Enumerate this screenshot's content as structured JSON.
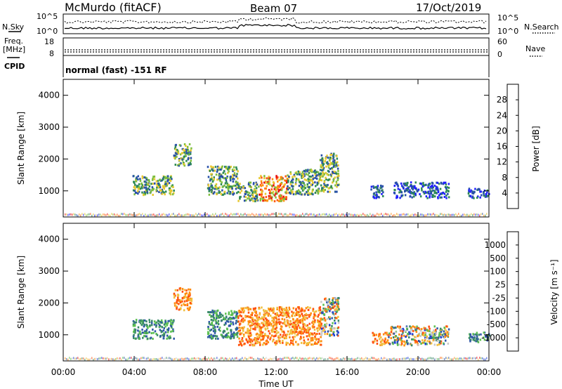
{
  "header": {
    "station": "McMurdo (fitACF)",
    "beam": "Beam 07",
    "date": "17/Oct/2019"
  },
  "top_panels": {
    "nsky_label": "N.Sky",
    "nsky_ticks": [
      "10^5",
      "10^0"
    ],
    "nsearch_label": "N.Search",
    "nsearch_ticks": [
      "10^5",
      "10^0"
    ],
    "freq_label_1": "Freq.",
    "freq_label_2": "[MHz]",
    "freq_ticks": [
      "18",
      "8"
    ],
    "nave_label": "Nave",
    "nave_ticks": [
      "60",
      "0"
    ],
    "cpid_label": "CPID",
    "cpid_text": "normal (fast) -151 RF"
  },
  "chart_data": [
    {
      "type": "heatmap",
      "name": "power-panel",
      "ylabel": "Slant Range [km]",
      "yticks": [
        1000,
        2000,
        3000,
        4000
      ],
      "ylim": [
        180,
        4500
      ],
      "xlim": [
        0,
        24
      ],
      "colorbar": {
        "label": "Power [dB]",
        "ticks": [
          "4",
          "8",
          "12",
          "16",
          "20",
          "24",
          "28"
        ],
        "colors": [
          "#1f1fff",
          "#2850a8",
          "#2e8a55",
          "#7fbf3f",
          "#e8c830",
          "#ff9010",
          "#ff5a10",
          "#e81010"
        ]
      },
      "echo_regions": [
        {
          "t0": 3.9,
          "t1": 6.2,
          "r0": 900,
          "r1": 1500,
          "level": "medium"
        },
        {
          "t0": 6.2,
          "t1": 7.2,
          "r0": 1800,
          "r1": 2500,
          "level": "medium"
        },
        {
          "t0": 8.1,
          "t1": 9.8,
          "r0": 900,
          "r1": 1800,
          "level": "medium"
        },
        {
          "t0": 9.8,
          "t1": 11.0,
          "r0": 700,
          "r1": 1300,
          "level": "medium"
        },
        {
          "t0": 11.0,
          "t1": 12.6,
          "r0": 700,
          "r1": 1500,
          "level": "high"
        },
        {
          "t0": 12.6,
          "t1": 14.4,
          "r0": 900,
          "r1": 1700,
          "level": "medium"
        },
        {
          "t0": 14.4,
          "t1": 15.5,
          "r0": 1000,
          "r1": 2200,
          "level": "medium"
        },
        {
          "t0": 17.3,
          "t1": 18.0,
          "r0": 800,
          "r1": 1200,
          "level": "low"
        },
        {
          "t0": 18.6,
          "t1": 21.7,
          "r0": 800,
          "r1": 1300,
          "level": "low"
        },
        {
          "t0": 22.8,
          "t1": 24.0,
          "r0": 800,
          "r1": 1100,
          "level": "low"
        }
      ]
    },
    {
      "type": "heatmap",
      "name": "velocity-panel",
      "ylabel": "Slant Range [km]",
      "xlabel": "Time UT",
      "xticks": [
        "00:00",
        "04:00",
        "08:00",
        "12:00",
        "16:00",
        "20:00",
        "00:00"
      ],
      "yticks": [
        1000,
        2000,
        3000,
        4000
      ],
      "ylim": [
        180,
        4500
      ],
      "xlim": [
        0,
        24
      ],
      "colorbar": {
        "label": "Velocity [m s⁻¹]",
        "ticks": [
          "1000",
          "500",
          "100",
          "25",
          "-25",
          "-100",
          "-500",
          "-1000"
        ],
        "colors": [
          "#1f3fd8",
          "#2f57a8",
          "#3a8a68",
          "#5cc050",
          "#c8c8c8",
          "#f0c040",
          "#ff8c10",
          "#ff5010",
          "#e81010"
        ]
      },
      "echo_regions": [
        {
          "t0": 3.9,
          "t1": 6.2,
          "r0": 900,
          "r1": 1500,
          "velocity": "positive"
        },
        {
          "t0": 6.2,
          "t1": 7.2,
          "r0": 1800,
          "r1": 2500,
          "velocity": "negative"
        },
        {
          "t0": 8.1,
          "t1": 9.8,
          "r0": 900,
          "r1": 1800,
          "velocity": "positive"
        },
        {
          "t0": 9.8,
          "t1": 14.5,
          "r0": 700,
          "r1": 1900,
          "velocity": "negative"
        },
        {
          "t0": 14.5,
          "t1": 15.5,
          "r0": 1000,
          "r1": 2200,
          "velocity": "mixed"
        },
        {
          "t0": 17.4,
          "t1": 18.3,
          "r0": 700,
          "r1": 1100,
          "velocity": "negative"
        },
        {
          "t0": 18.3,
          "t1": 21.7,
          "r0": 700,
          "r1": 1300,
          "velocity": "mixed"
        },
        {
          "t0": 22.8,
          "t1": 24.0,
          "r0": 800,
          "r1": 1100,
          "velocity": "positive"
        }
      ]
    }
  ]
}
